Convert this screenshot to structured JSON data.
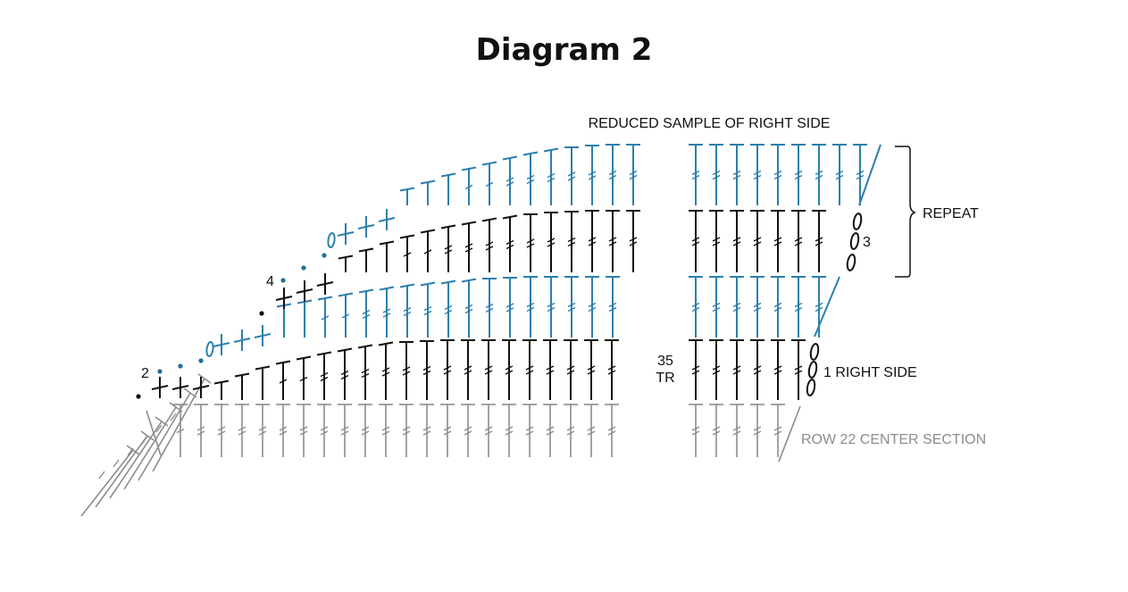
{
  "title": "Diagram 2",
  "labels": {
    "reduced_sample": "REDUCED SAMPLE OF RIGHT SIDE",
    "repeat": "REPEAT",
    "row3": "3",
    "row1": "1 RIGHT SIDE",
    "count_num": "35",
    "count_unit": "TR",
    "row22": "ROW 22 CENTER SECTION",
    "row2": "2",
    "row4": "4"
  },
  "colors": {
    "blue": "#2b7fad",
    "black": "#111111",
    "gray": "#8c8c8c",
    "dot_blue": "#1f6f9e"
  }
}
